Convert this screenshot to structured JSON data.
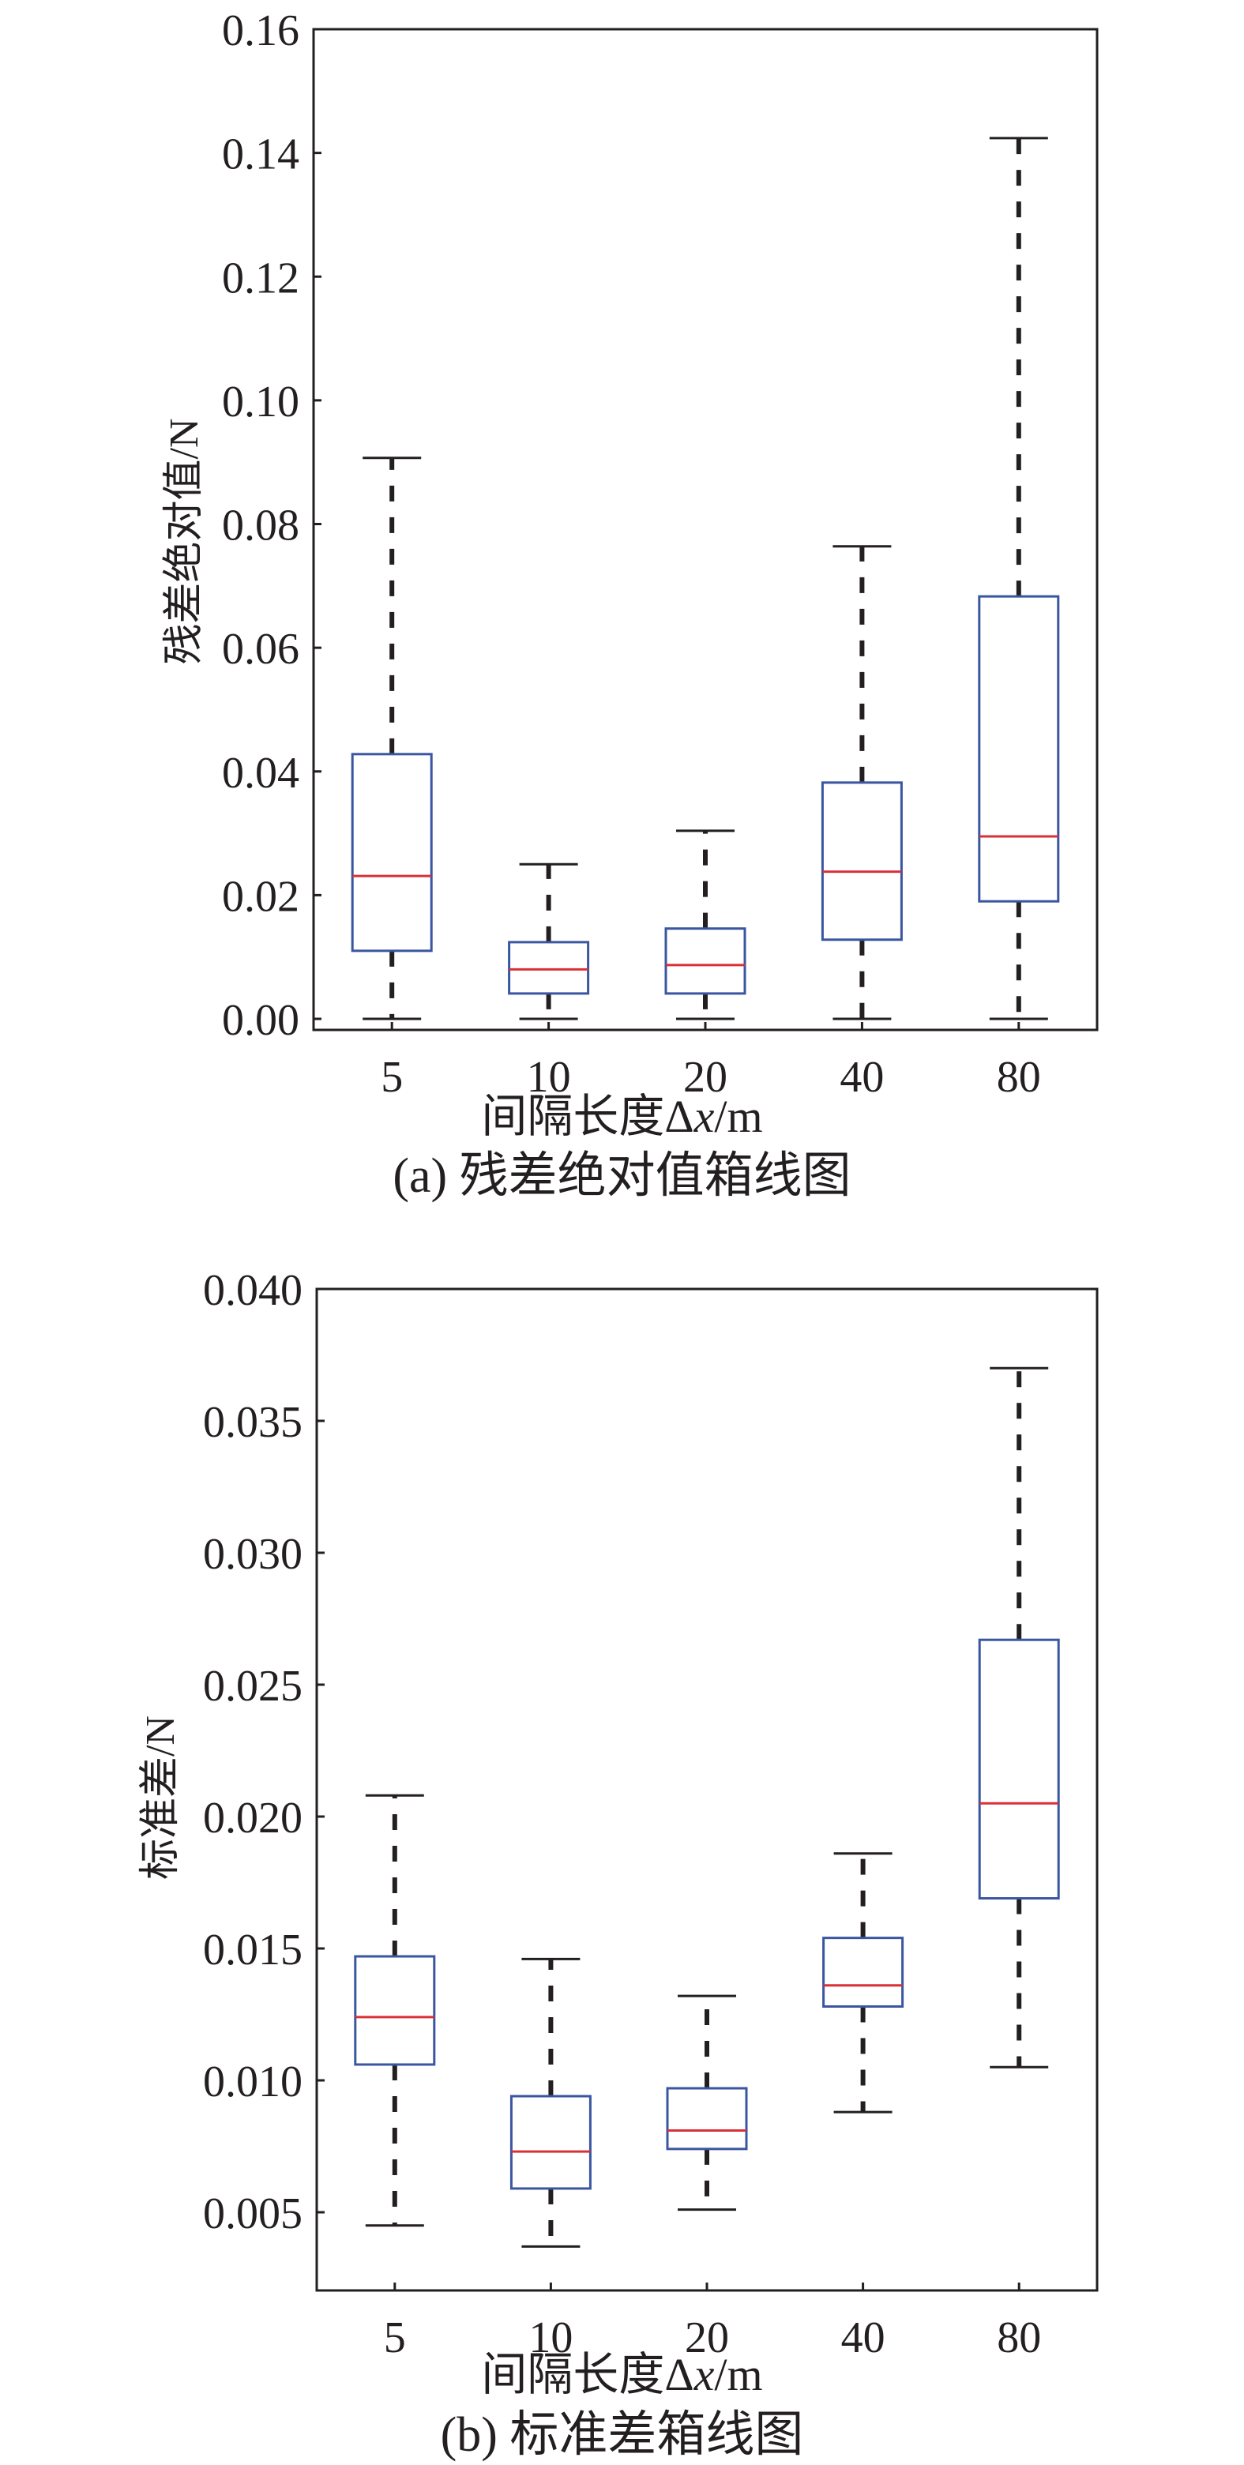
{
  "figure": {
    "panels": [
      {
        "id": "a",
        "caption": "(a) 残差绝对值箱线图",
        "xlabel_prefix": "间隔长度Δ",
        "xlabel_var": "x",
        "xlabel_suffix": "/m",
        "ylabel": "残差绝对值/N"
      },
      {
        "id": "b",
        "caption": "(b) 标准差箱线图",
        "xlabel_prefix": "间隔长度Δ",
        "xlabel_var": "x",
        "xlabel_suffix": "/m",
        "ylabel": "标准差/N"
      }
    ],
    "colors": {
      "box": "#3a56a0",
      "median": "#d93038",
      "whisker": "#231f20",
      "axis": "#231f20"
    }
  },
  "chart_data": [
    {
      "type": "box",
      "title": "(a) 残差绝对值箱线图",
      "xlabel": "间隔长度Δx/m",
      "ylabel": "残差绝对值/N",
      "categories": [
        "5",
        "10",
        "20",
        "40",
        "80"
      ],
      "ylim": [
        0.0,
        0.16
      ],
      "yticks": [
        0.0,
        0.02,
        0.04,
        0.06,
        0.08,
        0.1,
        0.12,
        0.14,
        0.16
      ],
      "ytick_labels": [
        "0.00",
        "0.02",
        "0.04",
        "0.06",
        "0.08",
        "0.10",
        "0.12",
        "0.14",
        "0.16"
      ],
      "grid": false,
      "boxes": [
        {
          "category": "5",
          "whisker_low": 0.0,
          "q1": 0.011,
          "median": 0.0231,
          "q3": 0.0428,
          "whisker_high": 0.0907
        },
        {
          "category": "10",
          "whisker_low": 0.0,
          "q1": 0.0041,
          "median": 0.008,
          "q3": 0.0124,
          "whisker_high": 0.025
        },
        {
          "category": "20",
          "whisker_low": 0.0,
          "q1": 0.0041,
          "median": 0.0087,
          "q3": 0.0146,
          "whisker_high": 0.0304
        },
        {
          "category": "40",
          "whisker_low": 0.0,
          "q1": 0.0128,
          "median": 0.0238,
          "q3": 0.0382,
          "whisker_high": 0.0764
        },
        {
          "category": "80",
          "whisker_low": 0.0,
          "q1": 0.019,
          "median": 0.0295,
          "q3": 0.0683,
          "whisker_high": 0.1424
        }
      ]
    },
    {
      "type": "box",
      "title": "(b) 标准差箱线图",
      "xlabel": "间隔长度Δx/m",
      "ylabel": "标准差/N",
      "categories": [
        "5",
        "10",
        "20",
        "40",
        "80"
      ],
      "ylim": [
        0.002,
        0.04
      ],
      "yticks": [
        0.005,
        0.01,
        0.015,
        0.02,
        0.025,
        0.03,
        0.035,
        0.04
      ],
      "ytick_labels": [
        "0.005",
        "0.010",
        "0.015",
        "0.020",
        "0.025",
        "0.030",
        "0.035",
        "0.040"
      ],
      "grid": false,
      "boxes": [
        {
          "category": "5",
          "whisker_low": 0.0045,
          "q1": 0.0106,
          "median": 0.0124,
          "q3": 0.0147,
          "whisker_high": 0.0208
        },
        {
          "category": "10",
          "whisker_low": 0.0037,
          "q1": 0.0059,
          "median": 0.0073,
          "q3": 0.0094,
          "whisker_high": 0.0146
        },
        {
          "category": "20",
          "whisker_low": 0.0051,
          "q1": 0.0074,
          "median": 0.0081,
          "q3": 0.0097,
          "whisker_high": 0.0132
        },
        {
          "category": "40",
          "whisker_low": 0.0088,
          "q1": 0.0128,
          "median": 0.0136,
          "q3": 0.0154,
          "whisker_high": 0.0186
        },
        {
          "category": "80",
          "whisker_low": 0.0105,
          "q1": 0.0169,
          "median": 0.0205,
          "q3": 0.0267,
          "whisker_high": 0.037
        }
      ]
    }
  ]
}
